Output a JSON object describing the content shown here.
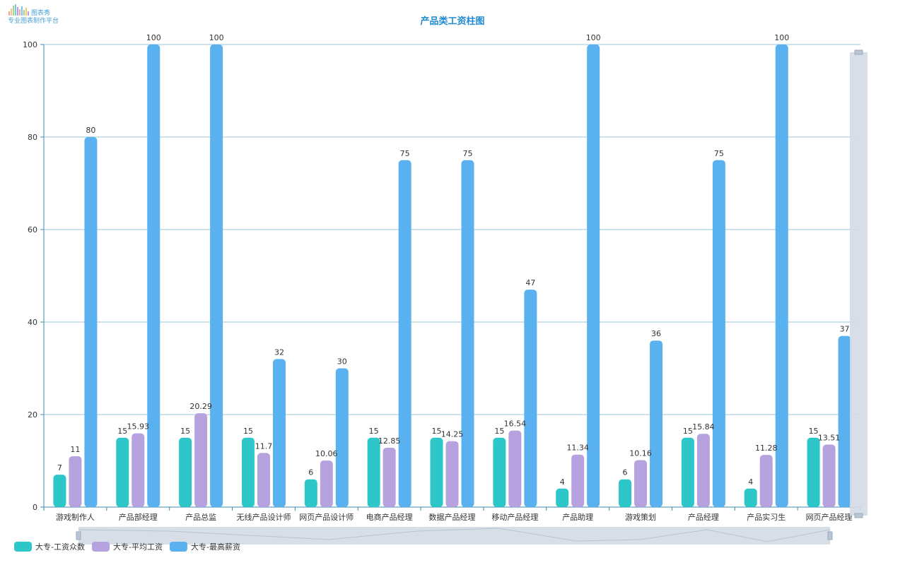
{
  "logo": {
    "name": "图表秀",
    "tagline": "专业图表制作平台"
  },
  "chart_data": {
    "type": "bar",
    "title": "产品类工资柱图",
    "xlabel": "",
    "ylabel": "",
    "ylim": [
      0,
      100
    ],
    "yticks": [
      0,
      20,
      40,
      60,
      80,
      100
    ],
    "grid": true,
    "legend_position": "bottom-left",
    "categories": [
      "游戏制作人",
      "产品部经理",
      "产品总监",
      "无线产品设计师",
      "网页产品设计师",
      "电商产品经理",
      "数据产品经理",
      "移动产品经理",
      "产品助理",
      "游戏策划",
      "产品经理",
      "产品实习生",
      "网页产品经理"
    ],
    "series": [
      {
        "name": "大专-工资众数",
        "color": "#2ec7c9",
        "values": [
          7,
          15,
          15,
          15,
          6,
          15,
          15,
          15,
          4,
          6,
          15,
          4,
          15
        ]
      },
      {
        "name": "大专-平均工资",
        "color": "#b6a2de",
        "values": [
          11,
          15.93,
          20.29,
          11.7,
          10.06,
          12.85,
          14.25,
          16.54,
          11.34,
          10.16,
          15.84,
          11.28,
          13.51
        ]
      },
      {
        "name": "大专-最高薪资",
        "color": "#5ab1ef",
        "values": [
          80,
          100,
          100,
          32,
          30,
          75,
          75,
          47,
          100,
          36,
          75,
          100,
          37
        ]
      }
    ]
  }
}
